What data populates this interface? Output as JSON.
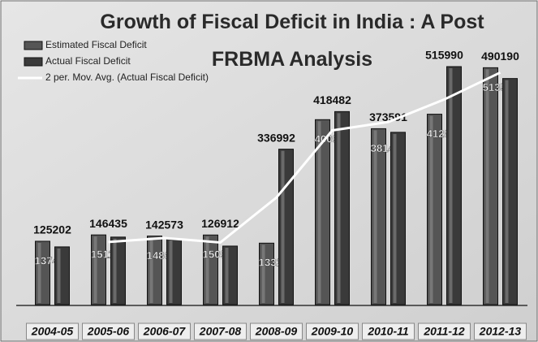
{
  "chart_data": {
    "type": "bar",
    "title": "Growth of Fiscal Deficit in India : A Post FRBMA Analysis",
    "categories": [
      "2004-05",
      "2005-06",
      "2006-07",
      "2007-08",
      "2008-09",
      "2009-10",
      "2010-11",
      "2011-12",
      "2012-13"
    ],
    "series": [
      {
        "name": "Estimated  Fiscal Deficit",
        "color": "#555555",
        "values": [
          137407,
          151144,
          148686,
          150948,
          133287,
          400996,
          381408,
          412817,
          513590
        ]
      },
      {
        "name": "Actual Fiscal Deficit",
        "color": "#3a3a3a",
        "values": [
          125202,
          146435,
          142573,
          126912,
          336992,
          418482,
          373591,
          515990,
          490190
        ]
      },
      {
        "name": "2 per. Mov. Avg. (Actual Fiscal Deficit)",
        "color": "#ffffff",
        "type": "line",
        "values": [
          null,
          135818.5,
          144504,
          134742.5,
          231952,
          377737,
          396036.5,
          444790.5,
          503090
        ]
      }
    ],
    "ylim": [
      0,
      560000
    ]
  }
}
